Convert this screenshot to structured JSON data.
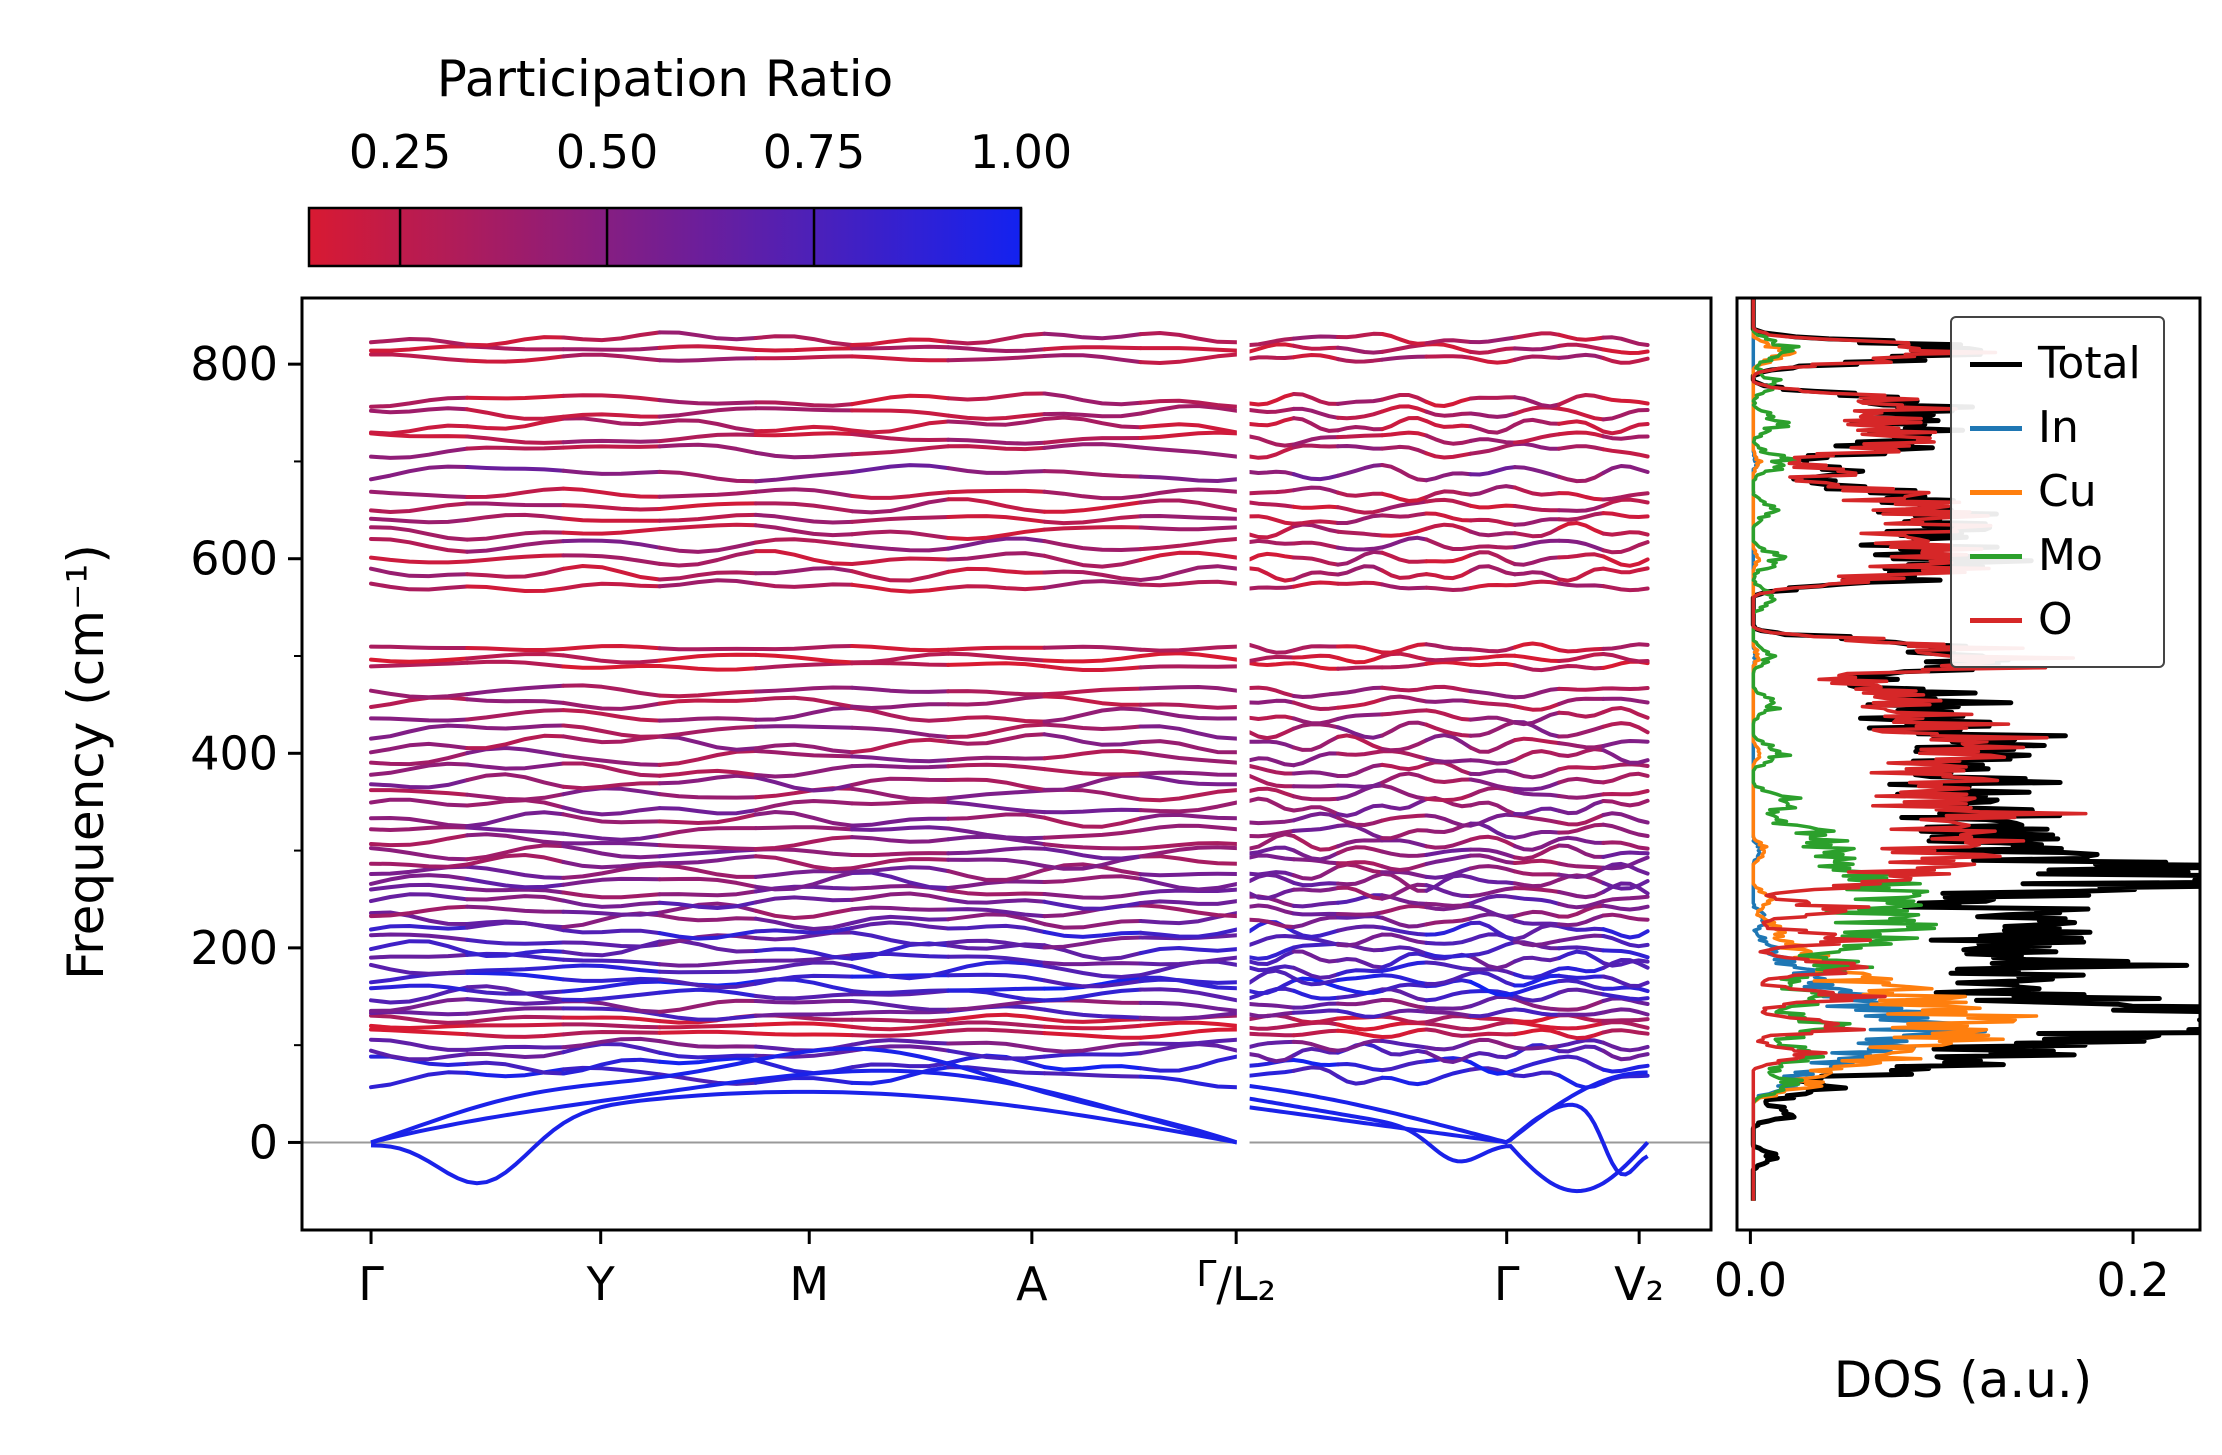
{
  "chart_data": {
    "type": "line",
    "subtype": "phonon band structure with projected DOS",
    "title": "",
    "colorbar": {
      "label": "Participation Ratio",
      "ticks": [
        0.25,
        0.5,
        0.75,
        1.0
      ],
      "tick_labels": [
        "0.25",
        "0.50",
        "0.75",
        "1.00"
      ],
      "vmin": 0.14,
      "vmax": 1.0,
      "color_min": "#d81a32",
      "color_max": "#1322f0"
    },
    "band_structure": {
      "ylabel": "Frequency (cm⁻¹)",
      "ylim": [
        -90,
        868
      ],
      "yticks": [
        0,
        200,
        400,
        600,
        800
      ],
      "ytick_labels": [
        "0",
        "200",
        "400",
        "600",
        "800"
      ],
      "kpoint_labels": [
        "Γ",
        "Y",
        "M",
        "A",
        "Γ/L₂",
        "Γ",
        "V₂"
      ],
      "kpoint_fracs": [
        0.049,
        0.212,
        0.36,
        0.518,
        0.663,
        0.855,
        0.949
      ],
      "panel_break_frac": 0.668,
      "zero_line_freq": 0,
      "acoustic_bands": {
        "count": 3,
        "participation": 0.97,
        "max_freq": 90,
        "min_freq": -48
      },
      "optical_bands": [
        [
          68,
          12,
          0.85
        ],
        [
          80,
          10,
          0.9
        ],
        [
          92,
          10,
          0.72
        ],
        [
          100,
          8,
          0.6
        ],
        [
          112,
          5,
          0.2
        ],
        [
          120,
          4,
          0.22
        ],
        [
          127,
          5,
          0.25
        ],
        [
          133,
          8,
          0.68
        ],
        [
          142,
          8,
          0.55
        ],
        [
          152,
          9,
          0.78
        ],
        [
          160,
          10,
          0.9
        ],
        [
          168,
          9,
          0.84
        ],
        [
          178,
          10,
          0.8
        ],
        [
          188,
          9,
          0.7
        ],
        [
          198,
          10,
          0.75
        ],
        [
          208,
          9,
          0.65
        ],
        [
          218,
          10,
          0.78
        ],
        [
          228,
          9,
          0.55
        ],
        [
          238,
          8,
          0.5
        ],
        [
          248,
          9,
          0.6
        ],
        [
          258,
          9,
          0.5
        ],
        [
          268,
          10,
          0.55
        ],
        [
          278,
          9,
          0.5
        ],
        [
          288,
          9,
          0.45
        ],
        [
          298,
          8,
          0.5
        ],
        [
          308,
          9,
          0.45
        ],
        [
          320,
          9,
          0.5
        ],
        [
          332,
          9,
          0.45
        ],
        [
          345,
          10,
          0.5
        ],
        [
          358,
          9,
          0.42
        ],
        [
          370,
          10,
          0.45
        ],
        [
          383,
          9,
          0.4
        ],
        [
          396,
          10,
          0.42
        ],
        [
          410,
          10,
          0.4
        ],
        [
          424,
          9,
          0.42
        ],
        [
          438,
          9,
          0.38
        ],
        [
          452,
          8,
          0.35
        ],
        [
          464,
          7,
          0.38
        ],
        [
          490,
          5,
          0.22
        ],
        [
          498,
          5,
          0.2
        ],
        [
          508,
          6,
          0.25
        ],
        [
          572,
          6,
          0.28
        ],
        [
          585,
          8,
          0.3
        ],
        [
          600,
          9,
          0.28
        ],
        [
          614,
          8,
          0.42
        ],
        [
          628,
          9,
          0.28
        ],
        [
          641,
          8,
          0.3
        ],
        [
          654,
          8,
          0.28
        ],
        [
          667,
          8,
          0.3
        ],
        [
          688,
          10,
          0.5
        ],
        [
          712,
          9,
          0.35
        ],
        [
          724,
          8,
          0.3
        ],
        [
          737,
          9,
          0.28
        ],
        [
          750,
          8,
          0.3
        ],
        [
          763,
          8,
          0.28
        ],
        [
          806,
          5,
          0.3
        ],
        [
          816,
          6,
          0.28
        ],
        [
          826,
          7,
          0.3
        ]
      ]
    },
    "dos": {
      "xlabel": "DOS (a.u.)",
      "xlim": [
        -0.007,
        0.235
      ],
      "xticks": [
        0.0,
        0.2
      ],
      "xtick_labels": [
        "0.0",
        "0.2"
      ],
      "legend_position": "upper right",
      "series": [
        {
          "name": "Total",
          "color": "#000000",
          "lw": 5,
          "pw": 9,
          "peaks": [
            [
              -15,
              0.012
            ],
            [
              30,
              0.02
            ],
            [
              55,
              0.04
            ],
            [
              75,
              0.08
            ],
            [
              90,
              0.11
            ],
            [
              105,
              0.15
            ],
            [
              118,
              0.2
            ],
            [
              128,
              0.21
            ],
            [
              140,
              0.17
            ],
            [
              155,
              0.12
            ],
            [
              170,
              0.14
            ],
            [
              185,
              0.15
            ],
            [
              200,
              0.13
            ],
            [
              215,
              0.14
            ],
            [
              228,
              0.12
            ],
            [
              240,
              0.11
            ],
            [
              255,
              0.12
            ],
            [
              268,
              0.21
            ],
            [
              282,
              0.19
            ],
            [
              295,
              0.13
            ],
            [
              310,
              0.12
            ],
            [
              325,
              0.11
            ],
            [
              340,
              0.12
            ],
            [
              355,
              0.1
            ],
            [
              370,
              0.11
            ],
            [
              385,
              0.1
            ],
            [
              400,
              0.12
            ],
            [
              415,
              0.11
            ],
            [
              430,
              0.09
            ],
            [
              445,
              0.08
            ],
            [
              458,
              0.07
            ],
            [
              470,
              0.05
            ],
            [
              488,
              0.1
            ],
            [
              500,
              0.09
            ],
            [
              512,
              0.08
            ],
            [
              578,
              0.06
            ],
            [
              592,
              0.09
            ],
            [
              605,
              0.08
            ],
            [
              618,
              0.07
            ],
            [
              632,
              0.09
            ],
            [
              645,
              0.08
            ],
            [
              658,
              0.07
            ],
            [
              670,
              0.06
            ],
            [
              690,
              0.05
            ],
            [
              712,
              0.06
            ],
            [
              725,
              0.07
            ],
            [
              738,
              0.06
            ],
            [
              752,
              0.07
            ],
            [
              765,
              0.06
            ],
            [
              806,
              0.07
            ],
            [
              818,
              0.09
            ]
          ]
        },
        {
          "name": "In",
          "color": "#1f77b4",
          "lw": 3.5,
          "pw": 11,
          "peaks": [
            [
              60,
              0.02
            ],
            [
              80,
              0.04
            ],
            [
              95,
              0.05
            ],
            [
              110,
              0.06
            ],
            [
              122,
              0.055
            ],
            [
              135,
              0.05
            ],
            [
              150,
              0.04
            ],
            [
              165,
              0.03
            ],
            [
              180,
              0.02
            ],
            [
              200,
              0.012
            ],
            [
              230,
              0.008
            ],
            [
              300,
              0.005
            ],
            [
              500,
              0.003
            ],
            [
              700,
              0.003
            ]
          ]
        },
        {
          "name": "Cu",
          "color": "#ff7f0e",
          "lw": 3.5,
          "pw": 11,
          "peaks": [
            [
              60,
              0.03
            ],
            [
              80,
              0.05
            ],
            [
              95,
              0.06
            ],
            [
              110,
              0.08
            ],
            [
              125,
              0.09
            ],
            [
              140,
              0.08
            ],
            [
              155,
              0.06
            ],
            [
              170,
              0.04
            ],
            [
              185,
              0.03
            ],
            [
              200,
              0.02
            ],
            [
              220,
              0.015
            ],
            [
              250,
              0.01
            ],
            [
              300,
              0.008
            ],
            [
              400,
              0.005
            ],
            [
              500,
              0.004
            ],
            [
              600,
              0.004
            ],
            [
              700,
              0.004
            ],
            [
              812,
              0.018
            ]
          ]
        },
        {
          "name": "Mo",
          "color": "#2ca02c",
          "lw": 3.5,
          "pw": 12,
          "peaks": [
            [
              60,
              0.02
            ],
            [
              90,
              0.03
            ],
            [
              120,
              0.04
            ],
            [
              150,
              0.04
            ],
            [
              180,
              0.05
            ],
            [
              205,
              0.06
            ],
            [
              225,
              0.07
            ],
            [
              245,
              0.065
            ],
            [
              262,
              0.06
            ],
            [
              280,
              0.05
            ],
            [
              300,
              0.04
            ],
            [
              320,
              0.03
            ],
            [
              350,
              0.02
            ],
            [
              400,
              0.015
            ],
            [
              450,
              0.012
            ],
            [
              500,
              0.01
            ],
            [
              560,
              0.012
            ],
            [
              600,
              0.015
            ],
            [
              650,
              0.012
            ],
            [
              700,
              0.018
            ],
            [
              740,
              0.015
            ],
            [
              780,
              0.012
            ],
            [
              815,
              0.02
            ]
          ]
        },
        {
          "name": "O",
          "color": "#d62728",
          "lw": 3.5,
          "pw": 9,
          "peaks": [
            [
              90,
              0.03
            ],
            [
              120,
              0.05
            ],
            [
              150,
              0.05
            ],
            [
              180,
              0.06
            ],
            [
              210,
              0.05
            ],
            [
              240,
              0.05
            ],
            [
              268,
              0.07
            ],
            [
              282,
              0.08
            ],
            [
              295,
              0.09
            ],
            [
              310,
              0.11
            ],
            [
              325,
              0.1
            ],
            [
              340,
              0.11
            ],
            [
              355,
              0.09
            ],
            [
              370,
              0.1
            ],
            [
              385,
              0.09
            ],
            [
              400,
              0.11
            ],
            [
              415,
              0.1
            ],
            [
              430,
              0.08
            ],
            [
              445,
              0.07
            ],
            [
              458,
              0.06
            ],
            [
              470,
              0.05
            ],
            [
              488,
              0.095
            ],
            [
              500,
              0.085
            ],
            [
              512,
              0.075
            ],
            [
              578,
              0.055
            ],
            [
              592,
              0.085
            ],
            [
              605,
              0.075
            ],
            [
              618,
              0.065
            ],
            [
              632,
              0.085
            ],
            [
              645,
              0.075
            ],
            [
              658,
              0.065
            ],
            [
              670,
              0.055
            ],
            [
              690,
              0.045
            ],
            [
              712,
              0.055
            ],
            [
              725,
              0.065
            ],
            [
              738,
              0.055
            ],
            [
              752,
              0.065
            ],
            [
              765,
              0.055
            ],
            [
              806,
              0.065
            ],
            [
              818,
              0.085
            ]
          ]
        }
      ]
    }
  }
}
